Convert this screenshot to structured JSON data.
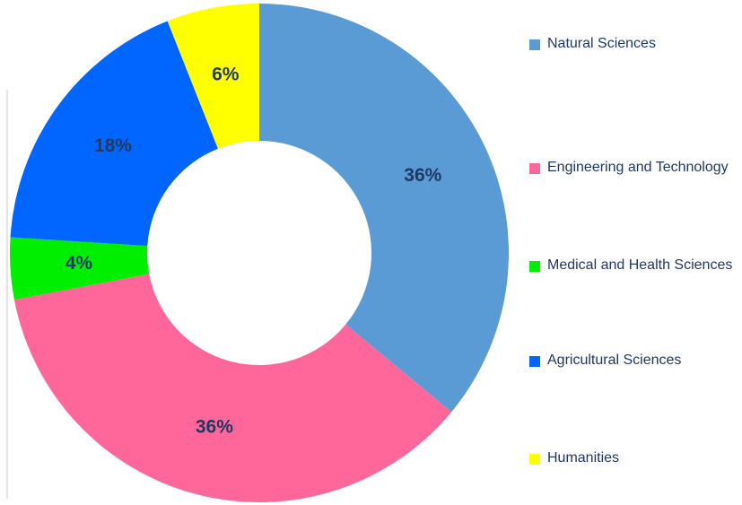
{
  "chart_data": {
    "type": "donut",
    "categories": [
      "Natural Sciences",
      "Engineering and Technology",
      "Medical and Health Sciences",
      "Agricultural Sciences",
      "Humanities"
    ],
    "values": [
      36,
      36,
      4,
      18,
      6
    ],
    "value_labels": [
      "36%",
      "36%",
      "4%",
      "18%",
      "6%"
    ],
    "colors": [
      "#5b9bd5",
      "#ff6699",
      "#00ee00",
      "#0066ff",
      "#ffff00"
    ],
    "legend": "right"
  }
}
